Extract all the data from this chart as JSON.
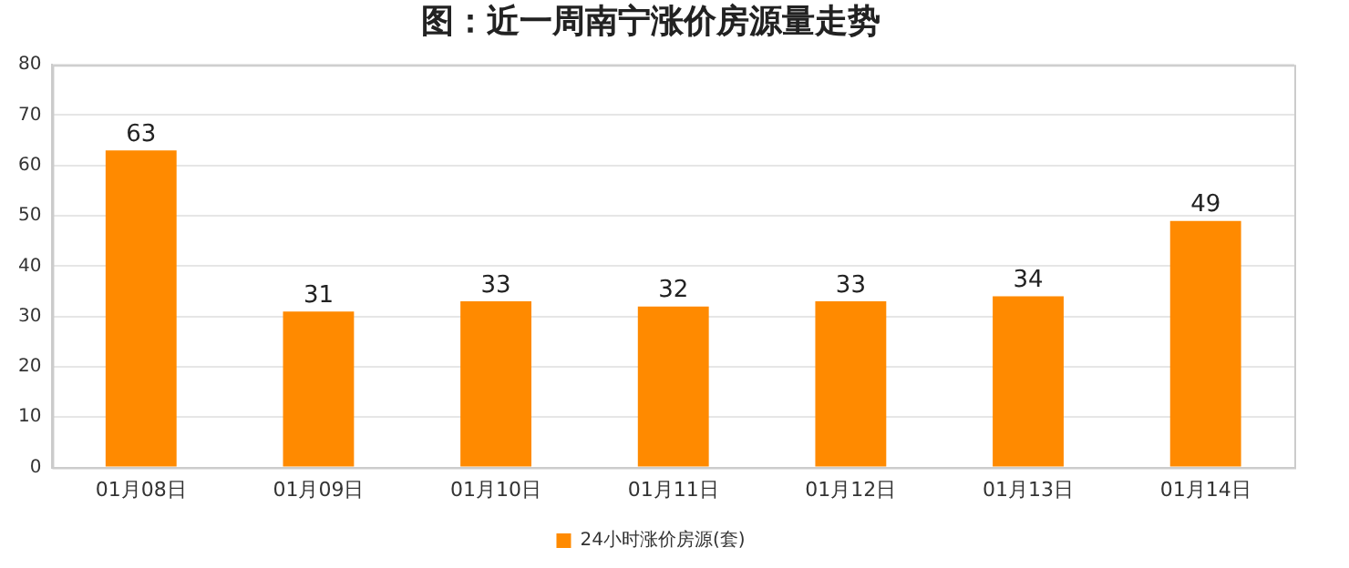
{
  "chart_data": {
    "type": "bar",
    "title": "图：近一周南宁涨价房源量走势",
    "categories": [
      "01月08日",
      "01月09日",
      "01月10日",
      "01月11日",
      "01月12日",
      "01月13日",
      "01月14日"
    ],
    "series": [
      {
        "name": "24小时涨价房源(套)",
        "color": "#ff8a00",
        "values": [
          63,
          31,
          33,
          32,
          33,
          34,
          49
        ]
      }
    ],
    "ylim": [
      0,
      80
    ],
    "yticks": [
      0,
      10,
      20,
      30,
      40,
      50,
      60,
      70,
      80
    ],
    "grid": "y",
    "legend": "bottom",
    "data_labels": true
  }
}
